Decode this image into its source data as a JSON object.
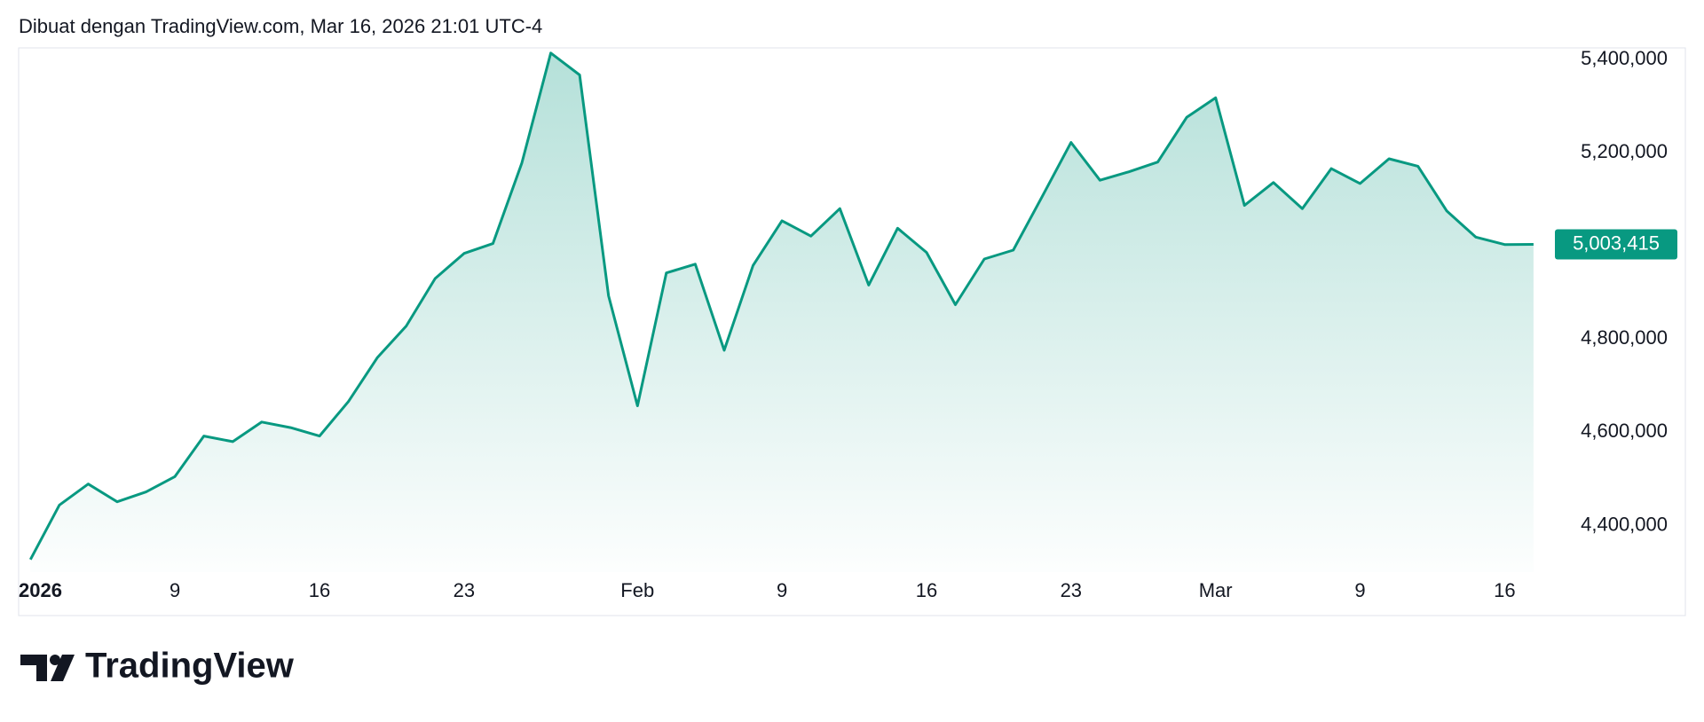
{
  "header": {
    "title": "Dibuat dengan TradingView.com, Mar 16, 2026 21:01 UTC-4"
  },
  "chart_data": {
    "type": "area",
    "categories": [
      "2026",
      null,
      null,
      null,
      null,
      "9",
      null,
      null,
      null,
      null,
      "16",
      null,
      null,
      null,
      null,
      "23",
      null,
      null,
      null,
      null,
      null,
      "Feb",
      null,
      null,
      null,
      null,
      "9",
      null,
      null,
      null,
      null,
      "16",
      null,
      null,
      null,
      null,
      "23",
      null,
      null,
      null,
      null,
      "Mar",
      null,
      null,
      null,
      null,
      "9",
      null,
      null,
      null,
      null,
      "16",
      null
    ],
    "values": [
      4327000,
      4444000,
      4489000,
      4451000,
      4472000,
      4505000,
      4592000,
      4580000,
      4622000,
      4610000,
      4592000,
      4666000,
      4760000,
      4828000,
      4930000,
      4984000,
      5005000,
      5178000,
      5414000,
      5367000,
      4893000,
      4657000,
      4942000,
      4961000,
      4776000,
      4958000,
      5054000,
      5021000,
      5080000,
      4916000,
      5038000,
      4986000,
      4874000,
      4972000,
      4991000,
      5106000,
      5222000,
      5141000,
      5159000,
      5180000,
      5276000,
      5318000,
      5087000,
      5136000,
      5080000,
      5166000,
      5134000,
      5187000,
      5171000,
      5075000,
      5019000,
      5003000,
      5003415
    ],
    "current_value_label": "5,003,415",
    "color": "#089981",
    "ylim": [
      4300000,
      5425000
    ],
    "yticks": [
      {
        "value": 4400000,
        "label": "4,400,000"
      },
      {
        "value": 4600000,
        "label": "4,600,000"
      },
      {
        "value": 4800000,
        "label": "4,800,000"
      },
      {
        "value": 5200000,
        "label": "5,200,000"
      },
      {
        "value": 5400000,
        "label": "5,400,000"
      }
    ]
  },
  "footer": {
    "brand": "TradingView"
  }
}
